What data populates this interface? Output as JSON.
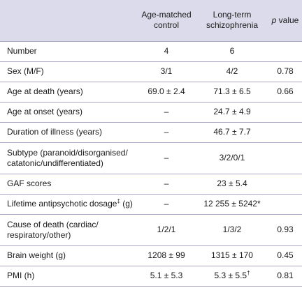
{
  "header": {
    "col_variable": "",
    "col_control": "Age-matched control",
    "col_schizo": "Long-term schizophrenia",
    "col_p_italic": "p",
    "col_p_text": " value"
  },
  "rows": [
    {
      "label": "Number",
      "control": "4",
      "schizo": "6",
      "p": ""
    },
    {
      "label": "Sex (M/F)",
      "control": "3/1",
      "schizo": "4/2",
      "p": "0.78"
    },
    {
      "label": "Age at death (years)",
      "control": "69.0 ± 2.4",
      "schizo": "71.3 ± 6.5",
      "p": "0.66"
    },
    {
      "label": "Age at onset (years)",
      "control": "–",
      "schizo": "24.7 ± 4.9",
      "p": ""
    },
    {
      "label": "Duration of illness (years)",
      "control": "–",
      "schizo": "46.7 ± 7.7",
      "p": ""
    },
    {
      "label": "Subtype (paranoid/disorganised/ catatonic/undifferentiated)",
      "control": "–",
      "schizo": "3/2/0/1",
      "p": ""
    },
    {
      "label": "GAF scores",
      "control": "–",
      "schizo": "23 ± 5.4",
      "p": ""
    },
    {
      "label": "Lifetime antipsychotic dosage",
      "label_sup": "‡",
      "label_suffix": " (g)",
      "control": "–",
      "schizo": "12 255 ± 5242*",
      "p": ""
    },
    {
      "label": "Cause of death (cardiac/ respiratory/other)",
      "control": "1/2/1",
      "schizo": "1/3/2",
      "p": "0.93"
    },
    {
      "label": "Brain weight (g)",
      "control": "1208 ± 99",
      "schizo": "1315 ± 170",
      "p": "0.45"
    },
    {
      "label": "PMI (h)",
      "control": "5.1 ± 5.3",
      "schizo": "5.3 ± 5.5",
      "schizo_sup": "†",
      "p": "0.81"
    }
  ]
}
